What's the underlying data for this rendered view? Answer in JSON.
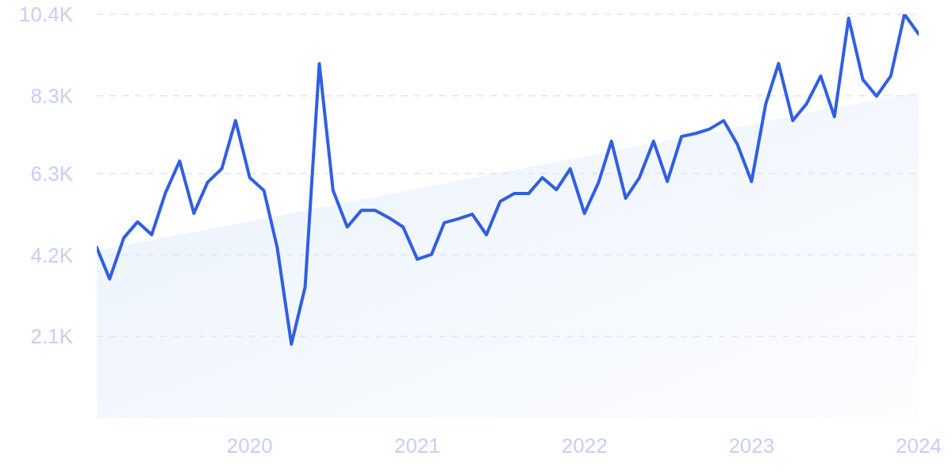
{
  "chart_data": {
    "type": "line",
    "xlim": [
      "2019-02",
      "2024-01"
    ],
    "xticks": [
      "2020",
      "2021",
      "2022",
      "2023",
      "2024"
    ],
    "ylim": [
      0,
      10400
    ],
    "yticks": [
      {
        "value": 2100,
        "label": "2.1K"
      },
      {
        "value": 4200,
        "label": "4.2K"
      },
      {
        "value": 6300,
        "label": "6.3K"
      },
      {
        "value": 8300,
        "label": "8.3K"
      },
      {
        "value": 10400,
        "label": "10.4K"
      }
    ],
    "grid": "y",
    "marker": "none",
    "line_style": "solid",
    "series": [
      {
        "type": "area",
        "color": "#dce9fa",
        "x": [
          "2019-02",
          "2024-01"
        ],
        "values": [
          4310,
          8400
        ]
      },
      {
        "color": "#2f5fe3",
        "x": [
          "2019-02",
          "2019-03",
          "2019-04",
          "2019-05",
          "2019-06",
          "2019-07",
          "2019-08",
          "2019-09",
          "2019-10",
          "2019-11",
          "2019-12",
          "2020-01",
          "2020-02",
          "2020-03",
          "2020-04",
          "2020-05",
          "2020-06",
          "2020-07",
          "2020-08",
          "2020-09",
          "2020-10",
          "2020-11",
          "2020-12",
          "2021-01",
          "2021-02",
          "2021-03",
          "2021-04",
          "2021-05",
          "2021-06",
          "2021-07",
          "2021-08",
          "2021-09",
          "2021-10",
          "2021-11",
          "2021-12",
          "2022-01",
          "2022-02",
          "2022-03",
          "2022-04",
          "2022-05",
          "2022-06",
          "2022-07",
          "2022-08",
          "2022-09",
          "2022-10",
          "2022-11",
          "2022-12",
          "2023-01",
          "2023-02",
          "2023-03",
          "2023-04",
          "2023-05",
          "2023-06",
          "2023-07",
          "2023-08",
          "2023-09",
          "2023-10",
          "2023-11",
          "2023-12",
          "2024-01"
        ],
        "values": [
          4390,
          3580,
          4640,
          5050,
          4720,
          5800,
          6620,
          5270,
          6070,
          6420,
          7660,
          6190,
          5860,
          4390,
          1900,
          3370,
          9130,
          5860,
          4920,
          5350,
          5350,
          5150,
          4920,
          4090,
          4210,
          5030,
          5130,
          5250,
          4720,
          5580,
          5780,
          5780,
          6190,
          5880,
          6420,
          5270,
          6070,
          7130,
          5660,
          6190,
          7130,
          6090,
          7250,
          7330,
          7440,
          7660,
          7050,
          6090,
          8090,
          9130,
          7660,
          8090,
          8810,
          7760,
          10300,
          8720,
          8290,
          8810,
          10400,
          9890
        ]
      }
    ]
  }
}
